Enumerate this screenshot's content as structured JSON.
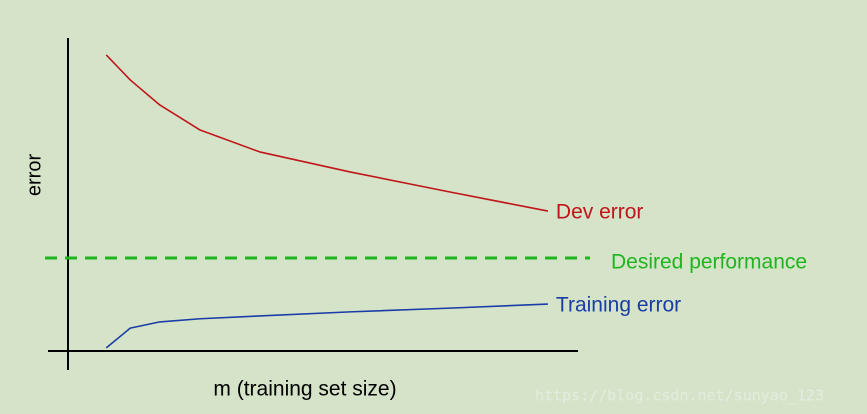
{
  "chart_data": {
    "type": "line",
    "x_label": "m (training set size)",
    "y_label": "error",
    "xlim": [
      0,
      100
    ],
    "ylim": [
      0,
      100
    ],
    "x": [
      7.5,
      12.2,
      18,
      25.9,
      37.6,
      55.3,
      74.9,
      94.1
    ],
    "series": [
      {
        "name": "Dev error",
        "color": "#c0151b",
        "values": [
          94.6,
          86.6,
          78.6,
          70.6,
          63.6,
          57.2,
          50.8,
          44.7
        ]
      },
      {
        "name": "Training error",
        "color": "#1a3ca6",
        "values": [
          1,
          7.3,
          9.3,
          10.3,
          11.2,
          12.5,
          13.7,
          15
        ]
      }
    ],
    "reference_lines": [
      {
        "name": "Desired performance",
        "color": "#1fb51f",
        "value": 29.7
      }
    ],
    "watermark": "https://blog.csdn.net/sunyao_123"
  }
}
